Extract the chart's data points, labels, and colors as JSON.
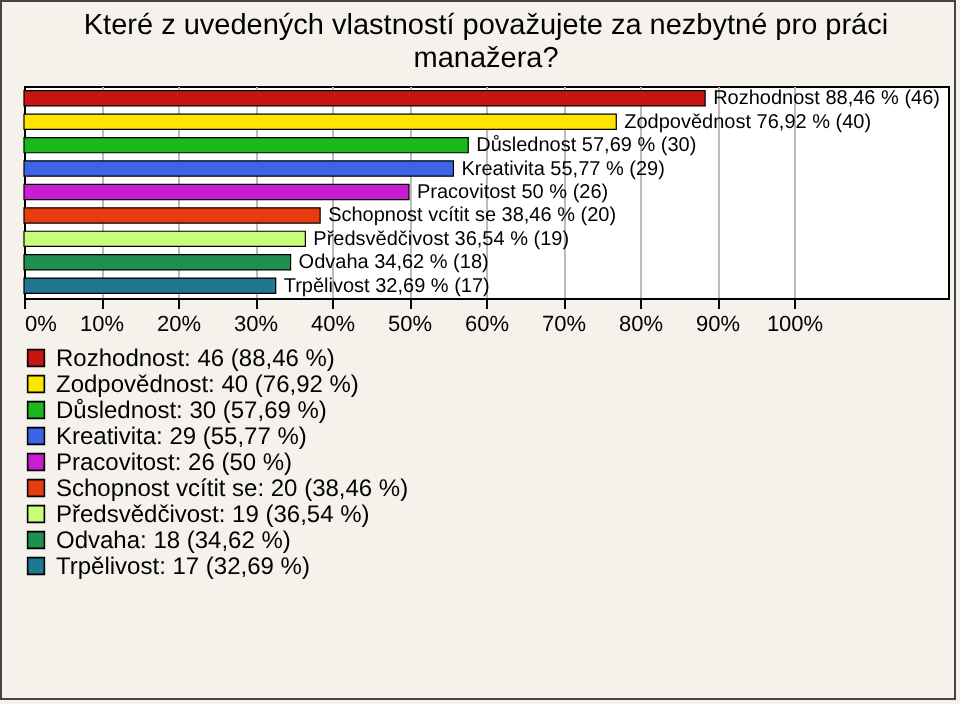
{
  "chart_data": {
    "type": "bar",
    "orientation": "horizontal",
    "title": "Které z uvedených vlastností považujete za nezbytné pro práci manažera?",
    "categories": [
      null,
      null,
      null,
      null,
      null,
      null,
      null,
      null,
      null
    ],
    "series": [
      {
        "name": "Rozhodnost: 46 (88,46 %)",
        "color": "#c8150f",
        "values": [
          88.46,
          null,
          null,
          null,
          null,
          null,
          null,
          null,
          null
        ],
        "value_labels": [
          "Rozhodnost 88,46 % (46)",
          null,
          null,
          null,
          null,
          null,
          null,
          null,
          null
        ]
      },
      {
        "name": "Zodpovědnost: 40 (76,92 %)",
        "color": "#ffe600",
        "values": [
          null,
          76.92,
          null,
          null,
          null,
          null,
          null,
          null,
          null
        ],
        "value_labels": [
          null,
          "Zodpovědnost 76,92 % (40)",
          null,
          null,
          null,
          null,
          null,
          null,
          null
        ]
      },
      {
        "name": "Důslednost: 30 (57,69 %)",
        "color": "#1bb81b",
        "values": [
          null,
          null,
          57.69,
          null,
          null,
          null,
          null,
          null,
          null
        ],
        "value_labels": [
          null,
          null,
          "Důslednost 57,69 % (30)",
          null,
          null,
          null,
          null,
          null,
          null
        ]
      },
      {
        "name": "Kreativita: 29 (55,77 %)",
        "color": "#3c64e6",
        "values": [
          null,
          null,
          null,
          55.77,
          null,
          null,
          null,
          null,
          null
        ],
        "value_labels": [
          null,
          null,
          null,
          "Kreativita 55,77 % (29)",
          null,
          null,
          null,
          null,
          null
        ]
      },
      {
        "name": "Pracovitost: 26 (50 %)",
        "color": "#c81ed2",
        "values": [
          null,
          null,
          null,
          null,
          50,
          null,
          null,
          null,
          null
        ],
        "value_labels": [
          null,
          null,
          null,
          null,
          "Pracovitost 50 % (26)",
          null,
          null,
          null,
          null
        ]
      },
      {
        "name": "Schopnost vcítit se: 20 (38,46 %)",
        "color": "#e63c0f",
        "values": [
          null,
          null,
          null,
          null,
          null,
          38.46,
          null,
          null,
          null
        ],
        "value_labels": [
          null,
          null,
          null,
          null,
          null,
          "Schopnost vcítit se 38,46 % (20)",
          null,
          null,
          null
        ]
      },
      {
        "name": "Předsvědčivost: 19 (36,54 %)",
        "color": "#c8ff78",
        "values": [
          null,
          null,
          null,
          null,
          null,
          null,
          36.54,
          null,
          null
        ],
        "value_labels": [
          null,
          null,
          null,
          null,
          null,
          null,
          "Předsvědčivost 36,54 % (19)",
          null,
          null
        ]
      },
      {
        "name": "Odvaha: 18 (34,62 %)",
        "color": "#1e9150",
        "values": [
          null,
          null,
          null,
          null,
          null,
          null,
          null,
          34.62,
          null
        ],
        "value_labels": [
          null,
          null,
          null,
          null,
          null,
          null,
          null,
          "Odvaha 34,62 % (18)",
          null
        ]
      },
      {
        "name": "Trpělivost: 17 (32,69 %)",
        "color": "#1e7891",
        "values": [
          null,
          null,
          null,
          null,
          null,
          null,
          null,
          null,
          32.69
        ],
        "value_labels": [
          null,
          null,
          null,
          null,
          null,
          null,
          null,
          null,
          "Trpělivost 32,69 % (17)"
        ]
      }
    ],
    "xlim": [
      0,
      120
    ],
    "xticks": [
      {
        "value": 0,
        "label": "0%"
      },
      {
        "value": 10,
        "label": "10%"
      },
      {
        "value": 20,
        "label": "20%"
      },
      {
        "value": 30,
        "label": "30%"
      },
      {
        "value": 40,
        "label": "40%"
      },
      {
        "value": 50,
        "label": "50%"
      },
      {
        "value": 60,
        "label": "60%"
      },
      {
        "value": 70,
        "label": "70%"
      },
      {
        "value": 80,
        "label": "80%"
      },
      {
        "value": 90,
        "label": "90%"
      },
      {
        "value": 100,
        "label": "100%"
      }
    ],
    "grid": "x",
    "legend": "bottom",
    "tick_labels": "x"
  }
}
